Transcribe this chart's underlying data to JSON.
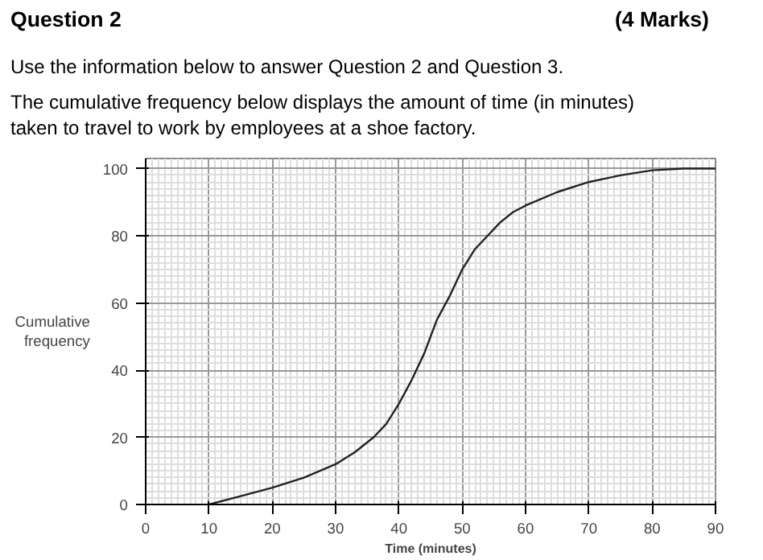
{
  "chart_data": {
    "type": "line",
    "title": "Question 2",
    "subtitle": "Use the information below to answer Question 2 and Question 3.",
    "annotations": [
      "(4 Marks)",
      "The cumulative frequency below displays the amount of time (in minutes) taken to travel to work by employees at a shoe factory."
    ],
    "xlabel": "Time (minutes)",
    "ylabel": "Cumulative frequency",
    "x": [
      10,
      15,
      20,
      25,
      30,
      33,
      36,
      38,
      40,
      42,
      44,
      46,
      48,
      50,
      52,
      54,
      56,
      58,
      60,
      65,
      70,
      75,
      80,
      85,
      90
    ],
    "series": [
      {
        "color": "#222222",
        "values": [
          0,
          2.5,
          5,
          8,
          12,
          15.5,
          20,
          24,
          30,
          37,
          45,
          55,
          62,
          70,
          76,
          80,
          84,
          87,
          89,
          93,
          96,
          98,
          99.5,
          100,
          100
        ]
      }
    ],
    "xlim": [
      0,
      90
    ],
    "ylim": [
      0,
      103
    ],
    "xticks": [
      0,
      10,
      20,
      30,
      40,
      50,
      60,
      70,
      80,
      90
    ],
    "yticks": [
      0,
      20,
      40,
      60,
      80,
      100
    ],
    "grid": true,
    "marker": "none",
    "line_style": "solid"
  }
}
